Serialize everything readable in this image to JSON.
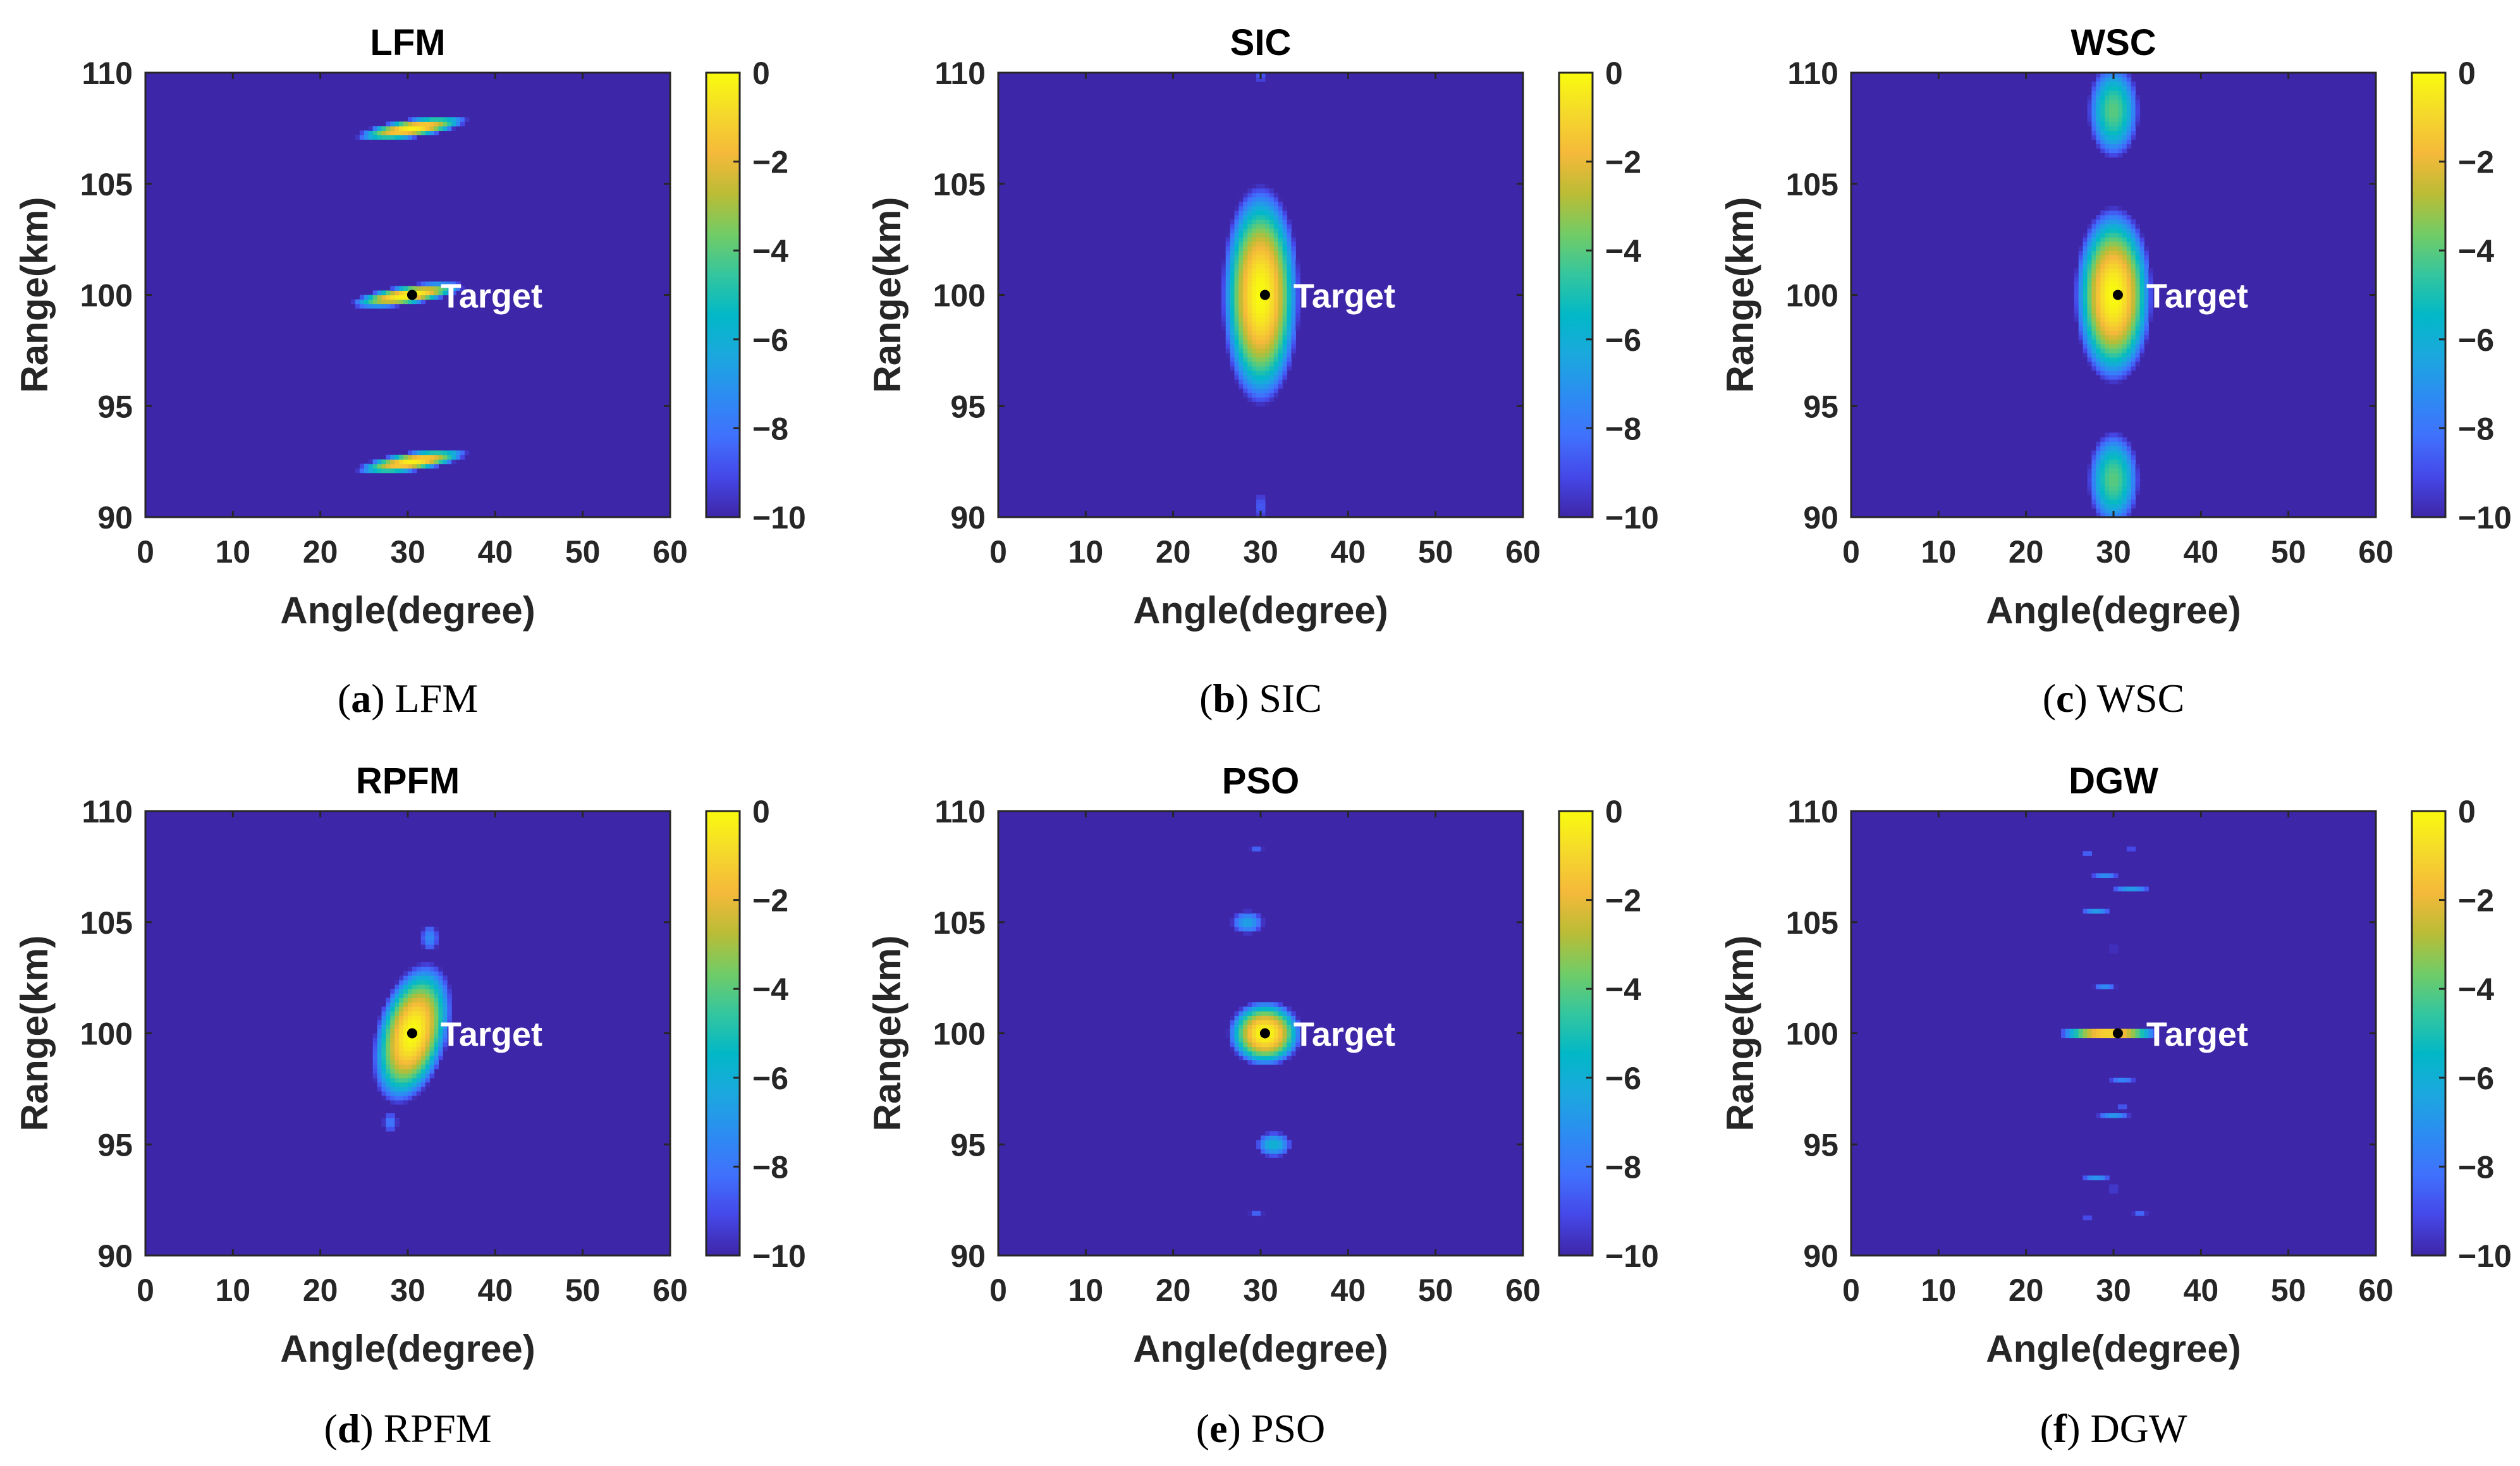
{
  "chart_data": [
    {
      "type": "heatmap",
      "title": "LFM",
      "caption_letter": "a",
      "caption_text": "LFM",
      "xlabel": "Angle(degree)",
      "ylabel": "Range(km)",
      "xlim": [
        0,
        60
      ],
      "ylim": [
        90,
        110
      ],
      "xticks": [
        0,
        10,
        20,
        30,
        40,
        50,
        60
      ],
      "yticks": [
        90,
        95,
        100,
        105,
        110
      ],
      "colorbar": {
        "range": [
          -10,
          0
        ],
        "ticks": [
          0,
          -2,
          -4,
          -6,
          -8,
          -10
        ]
      },
      "target": {
        "angle": 30.5,
        "range": 100,
        "label": "Target"
      },
      "blobs": [
        {
          "angle": 30.5,
          "range": 107.5,
          "peak": -0.3,
          "angle_halfwidth": 6.5,
          "range_halfwidth": 0.45,
          "slope": 0.06
        },
        {
          "angle": 30,
          "range": 100,
          "peak": 0,
          "angle_halfwidth": 6.5,
          "range_halfwidth": 0.45,
          "slope": 0.06
        },
        {
          "angle": 30.5,
          "range": 92.5,
          "peak": -0.3,
          "angle_halfwidth": 6.5,
          "range_halfwidth": 0.45,
          "slope": 0.06
        }
      ]
    },
    {
      "type": "heatmap",
      "title": "SIC",
      "caption_letter": "b",
      "caption_text": "SIC",
      "xlabel": "Angle(degree)",
      "ylabel": "Range(km)",
      "xlim": [
        0,
        60
      ],
      "ylim": [
        90,
        110
      ],
      "xticks": [
        0,
        10,
        20,
        30,
        40,
        50,
        60
      ],
      "yticks": [
        90,
        95,
        100,
        105,
        110
      ],
      "colorbar": {
        "range": [
          -10,
          0
        ],
        "ticks": [
          0,
          -2,
          -4,
          -6,
          -8,
          -10
        ]
      },
      "target": {
        "angle": 30.5,
        "range": 100,
        "label": "Target"
      },
      "blobs": [
        {
          "angle": 30,
          "range": 100,
          "peak": 0,
          "angle_halfwidth": 4.5,
          "range_halfwidth": 5,
          "slope": 0
        },
        {
          "angle": 30,
          "range": 110,
          "peak": -8.6,
          "angle_halfwidth": 2,
          "range_halfwidth": 1.3,
          "slope": 0
        },
        {
          "angle": 30,
          "range": 90.5,
          "peak": -8.6,
          "angle_halfwidth": 2,
          "range_halfwidth": 1.6,
          "slope": 0
        }
      ]
    },
    {
      "type": "heatmap",
      "title": "WSC",
      "caption_letter": "c",
      "caption_text": "WSC",
      "xlabel": "Angle(degree)",
      "ylabel": "Range(km)",
      "xlim": [
        0,
        60
      ],
      "ylim": [
        90,
        110
      ],
      "xticks": [
        0,
        10,
        20,
        30,
        40,
        50,
        60
      ],
      "yticks": [
        90,
        95,
        100,
        105,
        110
      ],
      "colorbar": {
        "range": [
          -10,
          0
        ],
        "ticks": [
          0,
          -2,
          -4,
          -6,
          -8,
          -10
        ]
      },
      "target": {
        "angle": 30.5,
        "range": 100,
        "label": "Target"
      },
      "blobs": [
        {
          "angle": 30,
          "range": 100,
          "peak": 0,
          "angle_halfwidth": 4.5,
          "range_halfwidth": 4,
          "slope": 0
        },
        {
          "angle": 30,
          "range": 108.3,
          "peak": -4,
          "angle_halfwidth": 3.8,
          "range_halfwidth": 2.8,
          "slope": 0
        },
        {
          "angle": 30,
          "range": 91.7,
          "peak": -4,
          "angle_halfwidth": 3.8,
          "range_halfwidth": 2.8,
          "slope": 0
        }
      ]
    },
    {
      "type": "heatmap",
      "title": "RPFM",
      "caption_letter": "d",
      "caption_text": "RPFM",
      "xlabel": "Angle(degree)",
      "ylabel": "Range(km)",
      "xlim": [
        0,
        60
      ],
      "ylim": [
        90,
        110
      ],
      "xticks": [
        0,
        10,
        20,
        30,
        40,
        50,
        60
      ],
      "yticks": [
        90,
        95,
        100,
        105,
        110
      ],
      "colorbar": {
        "range": [
          -10,
          0
        ],
        "ticks": [
          0,
          -2,
          -4,
          -6,
          -8,
          -10
        ]
      },
      "target": {
        "angle": 30.5,
        "range": 100,
        "label": "Target"
      },
      "blobs": [
        {
          "angle": 30.5,
          "range": 100,
          "peak": 0,
          "angle_halfwidth": 4.6,
          "range_halfwidth": 3,
          "slope": 0.25
        },
        {
          "angle": 32.5,
          "range": 104.3,
          "peak": -7.3,
          "angle_halfwidth": 2,
          "range_halfwidth": 1.2,
          "slope": 0
        },
        {
          "angle": 28,
          "range": 96,
          "peak": -7.8,
          "angle_halfwidth": 1.8,
          "range_halfwidth": 1,
          "slope": 0
        }
      ]
    },
    {
      "type": "heatmap",
      "title": "PSO",
      "caption_letter": "e",
      "caption_text": "PSO",
      "xlabel": "Angle(degree)",
      "ylabel": "Range(km)",
      "xlim": [
        0,
        60
      ],
      "ylim": [
        90,
        110
      ],
      "xticks": [
        0,
        10,
        20,
        30,
        40,
        50,
        60
      ],
      "yticks": [
        90,
        95,
        100,
        105,
        110
      ],
      "colorbar": {
        "range": [
          -10,
          0
        ],
        "ticks": [
          0,
          -2,
          -4,
          -6,
          -8,
          -10
        ]
      },
      "target": {
        "angle": 30.5,
        "range": 100,
        "label": "Target"
      },
      "blobs": [
        {
          "angle": 30.5,
          "range": 100,
          "peak": 0,
          "angle_halfwidth": 4.3,
          "range_halfwidth": 1.5,
          "slope": 0
        },
        {
          "angle": 28.5,
          "range": 105,
          "peak": -6.5,
          "angle_halfwidth": 3.2,
          "range_halfwidth": 0.9,
          "slope": 0
        },
        {
          "angle": 31.5,
          "range": 95,
          "peak": -5.8,
          "angle_halfwidth": 3.2,
          "range_halfwidth": 0.9,
          "slope": 0
        },
        {
          "angle": 29.5,
          "range": 108.3,
          "peak": -8.4,
          "angle_halfwidth": 2,
          "range_halfwidth": 0.5,
          "slope": 0
        },
        {
          "angle": 29.5,
          "range": 91.9,
          "peak": -8.4,
          "angle_halfwidth": 2,
          "range_halfwidth": 0.5,
          "slope": 0
        }
      ]
    },
    {
      "type": "heatmap",
      "title": "DGW",
      "caption_letter": "f",
      "caption_text": "DGW",
      "xlabel": "Angle(degree)",
      "ylabel": "Range(km)",
      "xlim": [
        0,
        60
      ],
      "ylim": [
        90,
        110
      ],
      "xticks": [
        0,
        10,
        20,
        30,
        40,
        50,
        60
      ],
      "yticks": [
        90,
        95,
        100,
        105,
        110
      ],
      "colorbar": {
        "range": [
          -10,
          0
        ],
        "ticks": [
          0,
          -2,
          -4,
          -6,
          -8,
          -10
        ]
      },
      "target": {
        "angle": 30.5,
        "range": 100,
        "label": "Target"
      },
      "blobs": [
        {
          "angle": 29.5,
          "range": 100,
          "peak": 0,
          "angle_halfwidth": 6,
          "range_halfwidth": 0.3,
          "slope": 0
        },
        {
          "angle": 27,
          "range": 108.1,
          "peak": -8.5,
          "angle_halfwidth": 2,
          "range_halfwidth": 0.15,
          "slope": 0
        },
        {
          "angle": 32,
          "range": 108.3,
          "peak": -8.8,
          "angle_halfwidth": 1.5,
          "range_halfwidth": 0.15,
          "slope": 0
        },
        {
          "angle": 29,
          "range": 107.1,
          "peak": -7.3,
          "angle_halfwidth": 3,
          "range_halfwidth": 0.2,
          "slope": 0
        },
        {
          "angle": 32,
          "range": 106.5,
          "peak": -6.8,
          "angle_halfwidth": 4,
          "range_halfwidth": 0.2,
          "slope": 0
        },
        {
          "angle": 28,
          "range": 105.5,
          "peak": -6.8,
          "angle_halfwidth": 3,
          "range_halfwidth": 0.2,
          "slope": 0
        },
        {
          "angle": 30,
          "range": 103.8,
          "peak": -7.2,
          "angle_halfwidth": 3.5,
          "range_halfwidth": 0.2,
          "slope": 0
        },
        {
          "angle": 29,
          "range": 103.4,
          "peak": -8.5,
          "angle_halfwidth": 2.5,
          "range_halfwidth": 0.15,
          "slope": 0
        },
        {
          "angle": 29,
          "range": 102.1,
          "peak": -7.3,
          "angle_halfwidth": 2.5,
          "range_halfwidth": 0.15,
          "slope": 0
        },
        {
          "angle": 31,
          "range": 97.9,
          "peak": -7.5,
          "angle_halfwidth": 3,
          "range_halfwidth": 0.15,
          "slope": 0
        },
        {
          "angle": 30,
          "range": 96.3,
          "peak": -7,
          "angle_halfwidth": 3.5,
          "range_halfwidth": 0.2,
          "slope": 0
        },
        {
          "angle": 31,
          "range": 96.7,
          "peak": -8.6,
          "angle_halfwidth": 1.5,
          "range_halfwidth": 0.15,
          "slope": 0
        },
        {
          "angle": 31,
          "range": 94.6,
          "peak": -7,
          "angle_halfwidth": 3.5,
          "range_halfwidth": 0.15,
          "slope": 0
        },
        {
          "angle": 28,
          "range": 93.5,
          "peak": -7,
          "angle_halfwidth": 3,
          "range_halfwidth": 0.2,
          "slope": 0
        },
        {
          "angle": 30,
          "range": 93,
          "peak": -7,
          "angle_halfwidth": 3.5,
          "range_halfwidth": 0.2,
          "slope": 0
        },
        {
          "angle": 33,
          "range": 91.9,
          "peak": -8.3,
          "angle_halfwidth": 2,
          "range_halfwidth": 0.15,
          "slope": 0
        },
        {
          "angle": 27,
          "range": 91.7,
          "peak": -8.8,
          "angle_halfwidth": 1.5,
          "range_halfwidth": 0.15,
          "slope": 0
        }
      ]
    }
  ],
  "colormap": [
    "#3e26a8",
    "#4548e8",
    "#4071fd",
    "#2c8cf2",
    "#1ba8de",
    "#02b8c7",
    "#34c69e",
    "#72cc66",
    "#bbbc35",
    "#f5b93a",
    "#f5d92b",
    "#f9fb0e"
  ]
}
